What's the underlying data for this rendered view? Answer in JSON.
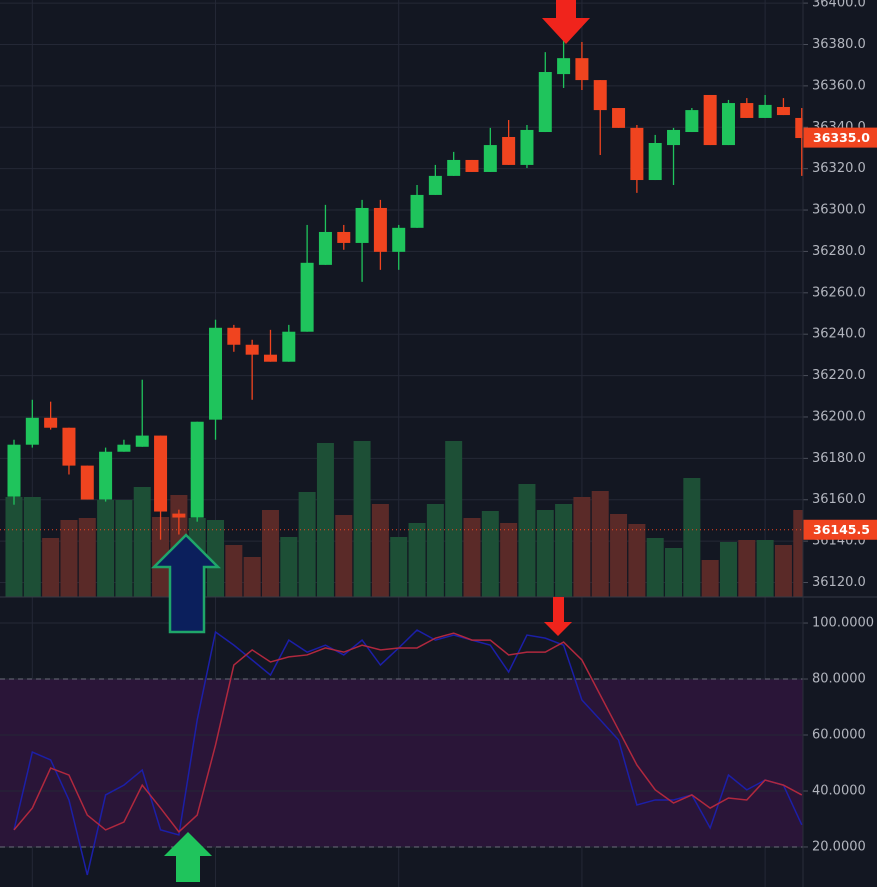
{
  "chart_data": [
    {
      "type": "candlestick",
      "ylim": [
        36113,
        36401.5
      ],
      "yticks": [
        {
          "value": 36120,
          "label": "36120.0"
        },
        {
          "value": 36140,
          "label": "36140.0"
        },
        {
          "value": 36160,
          "label": "36160.0"
        },
        {
          "value": 36180,
          "label": "36180.0"
        },
        {
          "value": 36200,
          "label": "36200.0"
        },
        {
          "value": 36220,
          "label": "36220.0"
        },
        {
          "value": 36240,
          "label": "36240.0"
        },
        {
          "value": 36260,
          "label": "36260.0"
        },
        {
          "value": 36280,
          "label": "36280.0"
        },
        {
          "value": 36300,
          "label": "36300.0"
        },
        {
          "value": 36320,
          "label": "36320.0"
        },
        {
          "value": 36340,
          "label": "36340.0"
        },
        {
          "value": 36360,
          "label": "36360.0"
        },
        {
          "value": 36380,
          "label": "36380.0"
        },
        {
          "value": 36400,
          "label": "36400.0"
        }
      ],
      "open": [
        36161.5,
        36186.6,
        36199.6,
        36194.8,
        36176.5,
        36160.1,
        36183.2,
        36185.6,
        36191.0,
        36153.3,
        36151.4,
        36198.7,
        36243.1,
        36234.9,
        36230.1,
        36226.7,
        36241.2,
        36273.5,
        36289.4,
        36284.1,
        36301.0,
        36279.8,
        36291.4,
        36307.3,
        36316.5,
        36324.2,
        36318.4,
        36335.3,
        36321.8,
        36337.7,
        36365.7,
        36373.4,
        36362.8,
        36349.3,
        36339.7,
        36314.5,
        36331.4,
        36337.7,
        36355.6,
        36331.4,
        36351.7,
        36344.5,
        36349.8,
        36344.5
      ],
      "high": [
        36189.0,
        36208.3,
        36207.4,
        36194.8,
        36176.5,
        36185.2,
        36189.0,
        36218.0,
        36191.0,
        36155.2,
        36197.7,
        36247.0,
        36244.5,
        36237.3,
        36242.1,
        36244.5,
        36292.8,
        36302.5,
        36292.8,
        36304.9,
        36304.9,
        36292.8,
        36312.1,
        36321.8,
        36328.1,
        36324.2,
        36339.7,
        36343.5,
        36341.1,
        36376.3,
        36382.1,
        36381.2,
        36362.8,
        36349.3,
        36341.1,
        36336.3,
        36339.7,
        36349.3,
        36355.6,
        36353.2,
        36354.1,
        36355.6,
        36354.1,
        36349.3
      ],
      "low": [
        36157.6,
        36185.2,
        36193.9,
        36172.2,
        36160.1,
        36159.1,
        36183.2,
        36185.6,
        36140.7,
        36143.2,
        36149.4,
        36189.0,
        36231.5,
        36208.3,
        36226.7,
        36226.7,
        36241.2,
        36273.5,
        36280.8,
        36265.3,
        36271.1,
        36271.1,
        36291.4,
        36307.3,
        36316.5,
        36318.4,
        36318.4,
        36321.8,
        36320.3,
        36337.7,
        36359.0,
        36358.0,
        36326.6,
        36339.7,
        36308.3,
        36314.5,
        36312.1,
        36337.7,
        36331.4,
        36331.4,
        36344.5,
        36344.5,
        36345.9,
        36316.5
      ],
      "close": [
        36186.6,
        36199.6,
        36194.8,
        36176.5,
        36160.1,
        36183.2,
        36186.6,
        36191.0,
        36154.3,
        36151.4,
        36197.7,
        36243.1,
        36234.9,
        36230.1,
        36226.7,
        36241.2,
        36274.5,
        36289.4,
        36284.1,
        36301.0,
        36279.8,
        36291.4,
        36307.3,
        36316.5,
        36324.2,
        36318.4,
        36331.4,
        36321.8,
        36338.7,
        36366.7,
        36373.4,
        36362.8,
        36348.3,
        36339.7,
        36314.5,
        36332.4,
        36338.7,
        36348.3,
        36331.4,
        36351.7,
        36344.5,
        36350.8,
        36345.9,
        36334.8
      ],
      "volume": [
        100,
        100,
        59,
        77,
        79,
        97,
        97,
        110,
        80,
        102,
        79,
        77,
        52,
        40,
        87,
        60,
        105,
        154,
        82,
        156,
        93,
        60,
        74,
        93,
        156,
        79,
        86,
        74,
        113,
        87,
        93,
        100,
        106,
        83,
        73,
        59,
        49,
        119,
        37,
        55,
        57,
        57,
        52,
        87
      ],
      "up_color": "#1fc45c",
      "down_color": "#f0441f",
      "volume_up_color": "#1d4f36",
      "volume_down_color": "#5a2a28",
      "grid": true,
      "price_labels": [
        {
          "value": 36335,
          "label": "36335.0",
          "dotted": false
        },
        {
          "value": 36145.5,
          "label": "36145.5",
          "dotted": true
        }
      ]
    },
    {
      "type": "line",
      "ylim": [
        5.7,
        109.3
      ],
      "yticks": [
        {
          "value": 20,
          "label": "20.0000"
        },
        {
          "value": 40,
          "label": "40.0000"
        },
        {
          "value": 60,
          "label": "60.0000"
        },
        {
          "value": 80,
          "label": "80.0000"
        },
        {
          "value": 100,
          "label": "100.0000"
        }
      ],
      "band": [
        20,
        80
      ],
      "band_color": "#2a1538",
      "grid": true,
      "series": [
        {
          "color": "#1c1fa8",
          "values": [
            26.1,
            53.9,
            51.1,
            36.8,
            10.0,
            38.6,
            42.1,
            47.5,
            26.1,
            24.3,
            65.4,
            96.8,
            92.1,
            86.8,
            81.4,
            93.9,
            89.6,
            92.1,
            88.6,
            93.9,
            85.0,
            91.1,
            97.5,
            93.9,
            95.7,
            93.9,
            92.1,
            82.5,
            95.7,
            94.6,
            92.1,
            72.5,
            65.4,
            58.2,
            35.0,
            36.8,
            36.8,
            38.6,
            26.8,
            45.7,
            40.4,
            43.9,
            42.1,
            27.9
          ]
        },
        {
          "color": "#b0283e",
          "values": [
            26.1,
            33.9,
            48.2,
            45.7,
            31.4,
            26.1,
            28.9,
            42.1,
            33.9,
            25.4,
            31.4,
            56.4,
            85.0,
            90.4,
            86.1,
            87.9,
            88.6,
            91.1,
            89.6,
            92.1,
            90.4,
            91.1,
            91.1,
            94.6,
            96.4,
            93.9,
            93.9,
            88.6,
            89.6,
            89.6,
            93.2,
            86.8,
            74.3,
            61.8,
            49.3,
            40.4,
            35.7,
            38.6,
            33.9,
            37.5,
            36.8,
            43.9,
            42.1,
            38.6
          ]
        }
      ]
    }
  ]
}
